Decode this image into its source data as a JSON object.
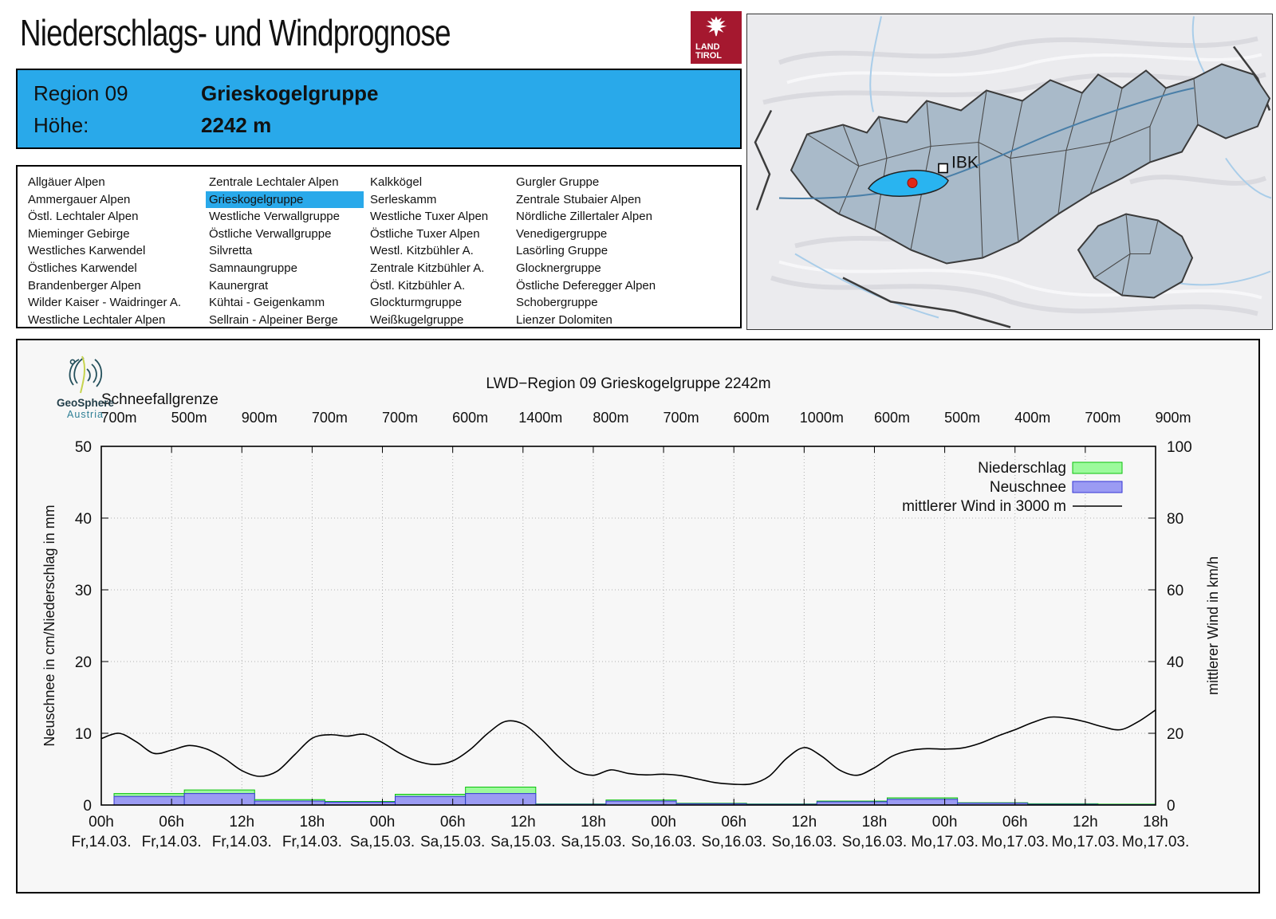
{
  "header": {
    "title": "Niederschlags- und Windprognose",
    "logo": {
      "line1": "LAND",
      "line2": "TIROL"
    }
  },
  "region_box": {
    "region_label": "Region 09",
    "region_name": "Grieskogelgruppe",
    "hoehe_label": "Höhe:",
    "hoehe_value": "2242 m"
  },
  "region_list": {
    "selected": "Grieskogelgruppe",
    "columns": [
      [
        "Allgäuer Alpen",
        "Ammergauer Alpen",
        "Östl. Lechtaler Alpen",
        "Mieminger Gebirge",
        "Westliches Karwendel",
        "Östliches Karwendel",
        "Brandenberger Alpen",
        "Wilder Kaiser - Waidringer A.",
        "Westliche Lechtaler Alpen"
      ],
      [
        "Zentrale Lechtaler Alpen",
        "Grieskogelgruppe",
        "Westliche Verwallgruppe",
        "Östliche Verwallgruppe",
        "Silvretta",
        "Samnaungruppe",
        "Kaunergrat",
        "Kühtai - Geigenkamm",
        "Sellrain - Alpeiner Berge"
      ],
      [
        "Kalkkögel",
        "Serleskamm",
        "Westliche Tuxer Alpen",
        "Östliche Tuxer Alpen",
        "Westl. Kitzbühler A.",
        "Zentrale Kitzbühler A.",
        "Östl. Kitzbühler A.",
        "Glockturmgruppe",
        "Weißkugelgruppe"
      ],
      [
        "Gurgler Gruppe",
        "Zentrale Stubaier Alpen",
        "Nördliche Zillertaler Alpen",
        "Venedigergruppe",
        "Lasörling Gruppe",
        "Glocknergruppe",
        "Östliche Deferegger Alpen",
        "Schobergruppe",
        "Lienzer Dolomiten"
      ]
    ]
  },
  "map": {
    "city_label": "IBK"
  },
  "source": {
    "name": "GeoSphere",
    "sub": "Austria"
  },
  "chart_data": {
    "type": "combo-bar-line",
    "title": "LWD−Region 09 Grieskogelgruppe 2242m",
    "snowline_label": "Schneefallgrenze",
    "snowline_values": [
      "700m",
      "500m",
      "900m",
      "700m",
      "700m",
      "600m",
      "1400m",
      "800m",
      "700m",
      "600m",
      "1000m",
      "600m",
      "500m",
      "400m",
      "700m",
      "900m"
    ],
    "y_left": {
      "label": "Neuschnee in cm/Niederschlag in mm",
      "min": 0,
      "max": 50,
      "ticks": [
        0,
        10,
        20,
        30,
        40,
        50
      ]
    },
    "y_right": {
      "label": "mittlerer Wind in km/h",
      "min": 0,
      "max": 100,
      "ticks": [
        0,
        20,
        40,
        60,
        80,
        100
      ]
    },
    "x_ticks": [
      {
        "time": "00h",
        "date": "Fr,14.03."
      },
      {
        "time": "06h",
        "date": "Fr,14.03."
      },
      {
        "time": "12h",
        "date": "Fr,14.03."
      },
      {
        "time": "18h",
        "date": "Fr,14.03."
      },
      {
        "time": "00h",
        "date": "Sa,15.03."
      },
      {
        "time": "06h",
        "date": "Sa,15.03."
      },
      {
        "time": "12h",
        "date": "Sa,15.03."
      },
      {
        "time": "18h",
        "date": "Sa,15.03."
      },
      {
        "time": "00h",
        "date": "So,16.03."
      },
      {
        "time": "06h",
        "date": "So,16.03."
      },
      {
        "time": "12h",
        "date": "So,16.03."
      },
      {
        "time": "18h",
        "date": "So,16.03."
      },
      {
        "time": "00h",
        "date": "Mo,17.03."
      },
      {
        "time": "06h",
        "date": "Mo,17.03."
      },
      {
        "time": "12h",
        "date": "Mo,17.03."
      },
      {
        "time": "18h",
        "date": "Mo,17.03."
      }
    ],
    "legend": [
      {
        "label": "Niederschlag",
        "type": "box",
        "fill": "#9cfa9c",
        "stroke": "#0bc20b"
      },
      {
        "label": "Neuschnee",
        "type": "box",
        "fill": "#9b9bf3",
        "stroke": "#3636d6"
      },
      {
        "label": "mittlerer Wind in 3000 m",
        "type": "line",
        "stroke": "#000000"
      }
    ],
    "bars": {
      "interval_hours": 6,
      "niederschlag_mm": [
        1.6,
        2.1,
        0.75,
        0.5,
        1.5,
        2.5,
        0.15,
        0.7,
        0.25,
        0.15,
        0.55,
        1.0,
        0.32,
        0.18,
        0.12
      ],
      "neuschnee_cm": [
        1.2,
        1.6,
        0.55,
        0.4,
        1.2,
        1.6,
        0.1,
        0.55,
        0.18,
        0.1,
        0.45,
        0.8,
        0.26,
        0.1,
        0.05
      ]
    },
    "wind_kmh": {
      "hours_step": 1.5,
      "values": [
        18.5,
        20.0,
        17.6,
        14.4,
        15.3,
        16.6,
        15.6,
        13.0,
        9.6,
        8.0,
        9.4,
        14.0,
        18.6,
        19.6,
        19.2,
        19.7,
        17.4,
        14.4,
        12.2,
        11.3,
        12.3,
        15.5,
        20.0,
        23.3,
        22.6,
        18.6,
        13.6,
        9.6,
        8.3,
        9.8,
        8.8,
        8.4,
        8.6,
        8.2,
        7.2,
        6.2,
        5.8,
        5.9,
        8.0,
        13.0,
        16.0,
        13.6,
        9.8,
        8.3,
        10.4,
        13.6,
        15.2,
        15.7,
        15.6,
        15.9,
        17.2,
        19.2,
        21.0,
        23.0,
        24.5,
        24.2,
        23.2,
        21.8,
        21.0,
        23.2,
        26.5
      ]
    },
    "colors": {
      "accent_blue": "#29a9ea",
      "grid": "#b0b0b0",
      "panel_bg": "#f7f7f7"
    }
  }
}
